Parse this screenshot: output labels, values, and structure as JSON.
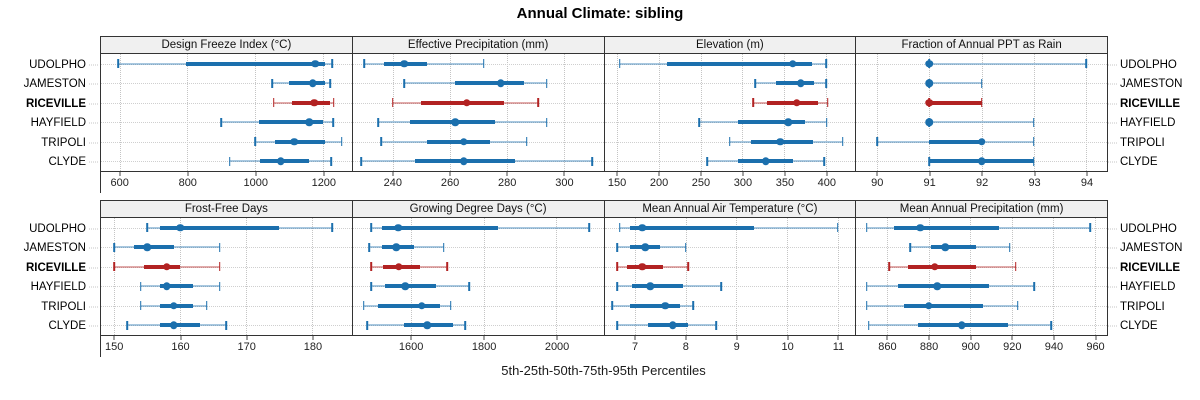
{
  "title": "Annual Climate: sibling",
  "footer": "5th-25th-50th-75th-95th Percentiles",
  "colors": {
    "series_default": "#1b6fad",
    "series_default_light": "rgba(27,111,173,0.38)",
    "series_highlight": "#b22222",
    "series_highlight_light": "rgba(178,34,34,0.38)",
    "strip_background": "#f0f0f0",
    "panel_border": "#333333",
    "grid_line": "#c4c4c4",
    "tick_text": "#222222"
  },
  "chart_data": {
    "type": "scatter",
    "subtype": "dotplot-percentile-intervals",
    "title": "Annual Climate: sibling",
    "xlabel": "5th-25th-50th-75th-95th Percentiles",
    "grid": "dotted",
    "legend_position": "none",
    "layout": {
      "rows": 2,
      "cols": 4
    },
    "percentiles": [
      5,
      25,
      50,
      75,
      95
    ],
    "sites": [
      "UDOLPHO",
      "JAMESTON",
      "RICEVILLE",
      "HAYFIELD",
      "TRIPOLI",
      "CLYDE"
    ],
    "highlighted_site": "RICEVILLE",
    "panels": [
      {
        "title": "Design Freeze Index (°C)",
        "row": 0,
        "col": 0,
        "xlim": [
          545,
          1285
        ],
        "ticks": [
          600,
          800,
          1000,
          1200
        ],
        "values": [
          [
            595,
            795,
            1178,
            1205,
            1228
          ],
          [
            1050,
            1100,
            1170,
            1205,
            1222
          ],
          [
            1055,
            1110,
            1175,
            1220,
            1232
          ],
          [
            900,
            1010,
            1160,
            1200,
            1230
          ],
          [
            1000,
            1060,
            1115,
            1205,
            1255
          ],
          [
            925,
            1015,
            1075,
            1160,
            1225
          ]
        ]
      },
      {
        "title": "Effective Precipitation (mm)",
        "row": 0,
        "col": 1,
        "xlim": [
          226,
          314
        ],
        "ticks": [
          240,
          260,
          280,
          300
        ],
        "values": [
          [
            230,
            237,
            244,
            252,
            272
          ],
          [
            244,
            262,
            278,
            286,
            294
          ],
          [
            240,
            250,
            266,
            279,
            291
          ],
          [
            235,
            246,
            262,
            276,
            294
          ],
          [
            236,
            252,
            265,
            274,
            287
          ],
          [
            229,
            248,
            265,
            283,
            310
          ]
        ]
      },
      {
        "title": "Elevation (m)",
        "row": 0,
        "col": 2,
        "xlim": [
          135,
          435
        ],
        "ticks": [
          150,
          200,
          250,
          300,
          350,
          400
        ],
        "values": [
          [
            153,
            210,
            360,
            383,
            400
          ],
          [
            315,
            340,
            370,
            386,
            400
          ],
          [
            313,
            330,
            365,
            390,
            402
          ],
          [
            248,
            295,
            355,
            375,
            401
          ],
          [
            285,
            310,
            345,
            385,
            420
          ],
          [
            258,
            295,
            328,
            360,
            398
          ]
        ]
      },
      {
        "title": "Fraction of Annual PPT as Rain",
        "row": 0,
        "col": 3,
        "xlim": [
          89.6,
          94.4
        ],
        "ticks": [
          90,
          91,
          92,
          93,
          94
        ],
        "values": [
          [
            91,
            91,
            91,
            91,
            94
          ],
          [
            91,
            91,
            91,
            91,
            92
          ],
          [
            91,
            91,
            91,
            92,
            92
          ],
          [
            91,
            91,
            91,
            91,
            93
          ],
          [
            90,
            91,
            92,
            92,
            93
          ],
          [
            91,
            91,
            92,
            93,
            93
          ]
        ]
      },
      {
        "title": "Frost-Free Days",
        "row": 1,
        "col": 0,
        "xlim": [
          148,
          186
        ],
        "ticks": [
          150,
          160,
          170,
          180
        ],
        "values": [
          [
            155,
            157,
            160,
            175,
            183
          ],
          [
            150,
            153,
            155,
            159,
            166
          ],
          [
            150,
            154.5,
            158,
            160,
            166
          ],
          [
            154,
            157,
            158,
            162,
            166
          ],
          [
            154,
            157,
            159,
            162,
            164
          ],
          [
            152,
            157,
            159,
            163,
            167
          ]
        ]
      },
      {
        "title": "Growing Degree Days (°C)",
        "row": 1,
        "col": 1,
        "xlim": [
          1440,
          2130
        ],
        "ticks": [
          1600,
          1800,
          2000
        ],
        "values": [
          [
            1490,
            1520,
            1565,
            1840,
            2090
          ],
          [
            1485,
            1520,
            1560,
            1610,
            1690
          ],
          [
            1490,
            1524,
            1567,
            1624,
            1700
          ],
          [
            1490,
            1530,
            1585,
            1670,
            1760
          ],
          [
            1470,
            1510,
            1630,
            1680,
            1710
          ],
          [
            1480,
            1580,
            1645,
            1715,
            1750
          ]
        ]
      },
      {
        "title": "Mean Annual Air Temperature (°C)",
        "row": 1,
        "col": 2,
        "xlim": [
          6.4,
          11.35
        ],
        "ticks": [
          7,
          8,
          9,
          10,
          11
        ],
        "values": [
          [
            6.7,
            6.9,
            7.15,
            9.35,
            11.0
          ],
          [
            6.65,
            6.9,
            7.2,
            7.5,
            8.0
          ],
          [
            6.65,
            6.85,
            7.15,
            7.55,
            8.05
          ],
          [
            6.65,
            6.95,
            7.3,
            7.95,
            8.7
          ],
          [
            6.55,
            6.9,
            7.6,
            7.9,
            8.15
          ],
          [
            6.65,
            7.25,
            7.75,
            8.05,
            8.6
          ]
        ]
      },
      {
        "title": "Mean Annual Precipitation (mm)",
        "row": 1,
        "col": 3,
        "xlim": [
          845,
          966
        ],
        "ticks": [
          860,
          880,
          900,
          920,
          940,
          960
        ],
        "values": [
          [
            850,
            863,
            876,
            914,
            958
          ],
          [
            871,
            881,
            888,
            903,
            919
          ],
          [
            861,
            870,
            883,
            903,
            922
          ],
          [
            850,
            865,
            884,
            909,
            931
          ],
          [
            850,
            868,
            880,
            906,
            923
          ],
          [
            851,
            875,
            896,
            918,
            939
          ]
        ]
      }
    ]
  }
}
